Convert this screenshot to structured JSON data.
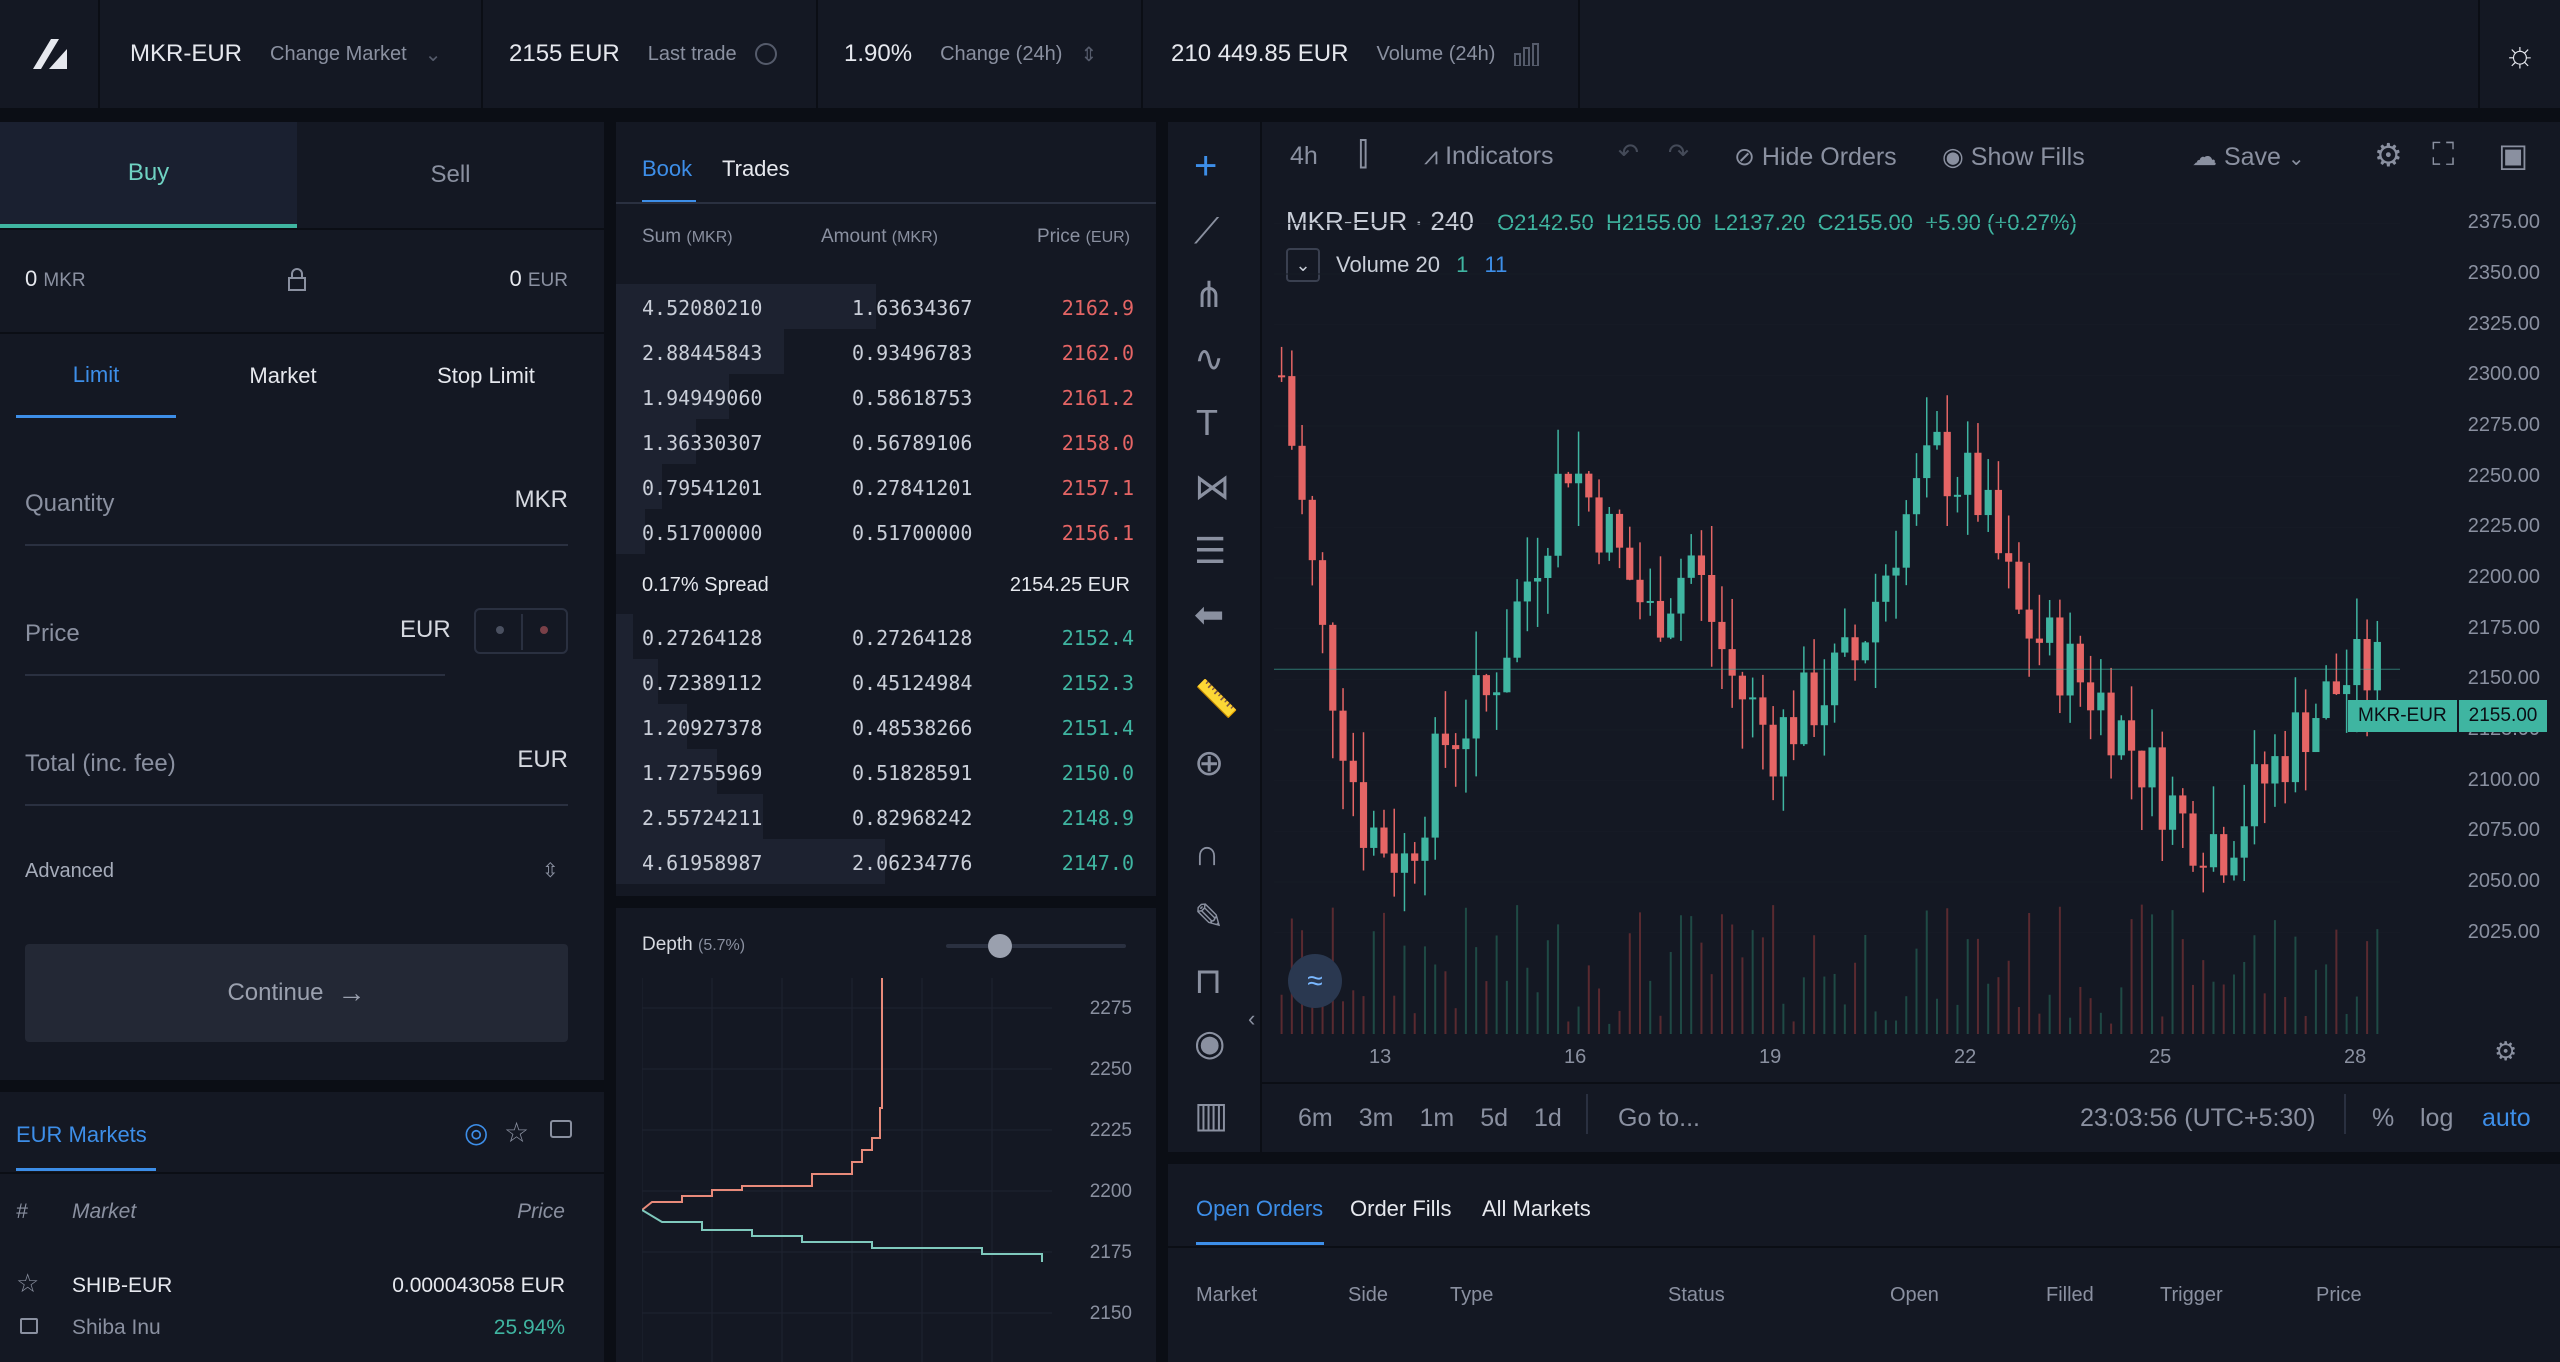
{
  "header": {
    "market": "MKR-EUR",
    "change_market": "Change Market",
    "last_trade_value": "2155 EUR",
    "last_trade_label": "Last trade",
    "change_value": "1.90%",
    "change_label": "Change (24h)",
    "volume_value": "210 449.85 EUR",
    "volume_label": "Volume (24h)"
  },
  "trade": {
    "buy": "Buy",
    "sell": "Sell",
    "balance_left": "0",
    "balance_left_unit": "MKR",
    "balance_right": "0",
    "balance_right_unit": "EUR",
    "order_tabs": [
      "Limit",
      "Market",
      "Stop Limit"
    ],
    "quantity_label": "Quantity",
    "quantity_unit": "MKR",
    "price_label": "Price",
    "price_unit": "EUR",
    "total_label": "Total (inc. fee)",
    "total_unit": "EUR",
    "advanced": "Advanced",
    "continue": "Continue"
  },
  "markets": {
    "title": "EUR Markets",
    "col_num": "#",
    "col_market": "Market",
    "col_price": "Price",
    "rows": [
      {
        "symbol": "SHIB-EUR",
        "name": "Shiba Inu",
        "price": "0.000043058 EUR",
        "change": "25.94%"
      }
    ]
  },
  "book": {
    "tab_book": "Book",
    "tab_trades": "Trades",
    "col_sum": "Sum",
    "col_sum_unit": "(MKR)",
    "col_amount": "Amount",
    "col_amount_unit": "(MKR)",
    "col_price": "Price",
    "col_price_unit": "(EUR)",
    "asks": [
      {
        "sum": "4.52080210",
        "amount": "1.63634367",
        "price": "2162.9",
        "depth": 0.62
      },
      {
        "sum": "2.88445843",
        "amount": "0.93496783",
        "price": "2162.0",
        "depth": 0.4
      },
      {
        "sum": "1.94949060",
        "amount": "0.58618753",
        "price": "2161.2",
        "depth": 0.27
      },
      {
        "sum": "1.36330307",
        "amount": "0.56789106",
        "price": "2158.0",
        "depth": 0.19
      },
      {
        "sum": "0.79541201",
        "amount": "0.27841201",
        "price": "2157.1",
        "depth": 0.11
      },
      {
        "sum": "0.51700000",
        "amount": "0.51700000",
        "price": "2156.1",
        "depth": 0.07
      }
    ],
    "spread_label": "0.17% Spread",
    "spread_value": "2154.25 EUR",
    "bids": [
      {
        "sum": "0.27264128",
        "amount": "0.27264128",
        "price": "2152.4",
        "depth": 0.04
      },
      {
        "sum": "0.72389112",
        "amount": "0.45124984",
        "price": "2152.3",
        "depth": 0.1
      },
      {
        "sum": "1.20927378",
        "amount": "0.48538266",
        "price": "2151.4",
        "depth": 0.17
      },
      {
        "sum": "1.72755969",
        "amount": "0.51828591",
        "price": "2150.0",
        "depth": 0.24
      },
      {
        "sum": "2.55724211",
        "amount": "0.82968242",
        "price": "2148.9",
        "depth": 0.35
      },
      {
        "sum": "4.61958987",
        "amount": "2.06234776",
        "price": "2147.0",
        "depth": 0.64
      }
    ]
  },
  "depth": {
    "title": "Depth",
    "pct": "(5.7%)",
    "ticks": [
      "2275",
      "2250",
      "2225",
      "2200",
      "2175",
      "2150"
    ]
  },
  "chart": {
    "interval": "4h",
    "indicators": "Indicators",
    "hide_orders": "Hide Orders",
    "show_fills": "Show Fills",
    "save": "Save",
    "legend_title": "MKR-EUR · 240",
    "o": "O2142.50",
    "h": "H2155.00",
    "l": "L2137.20",
    "c": "C2155.00",
    "chg": "+5.90 (+0.27%)",
    "volume_label": "Volume 20",
    "volume_v1": "1",
    "volume_v2": "11",
    "price_tag": "MKR-EUR",
    "price_tag_value": "2155.00",
    "y_ticks": [
      "2375.00",
      "2350.00",
      "2325.00",
      "2300.00",
      "2275.00",
      "2250.00",
      "2225.00",
      "2200.00",
      "2175.00",
      "2150.00",
      "2125.00",
      "2100.00",
      "2075.00",
      "2050.00",
      "2025.00"
    ],
    "x_ticks": [
      "13",
      "16",
      "19",
      "22",
      "25",
      "28"
    ],
    "ranges": [
      "6m",
      "3m",
      "1m",
      "5d",
      "1d"
    ],
    "goto": "Go to...",
    "time": "23:03:56 (UTC+5:30)",
    "pct": "%",
    "log": "log",
    "auto": "auto",
    "colors": {
      "up": "#3fb5a1",
      "down": "#e56565"
    }
  },
  "orders": {
    "tabs": [
      "Open Orders",
      "Order Fills",
      "All Markets"
    ],
    "columns": [
      "Market",
      "Side",
      "Type",
      "Status",
      "Open",
      "Filled",
      "Trigger",
      "Price"
    ]
  }
}
